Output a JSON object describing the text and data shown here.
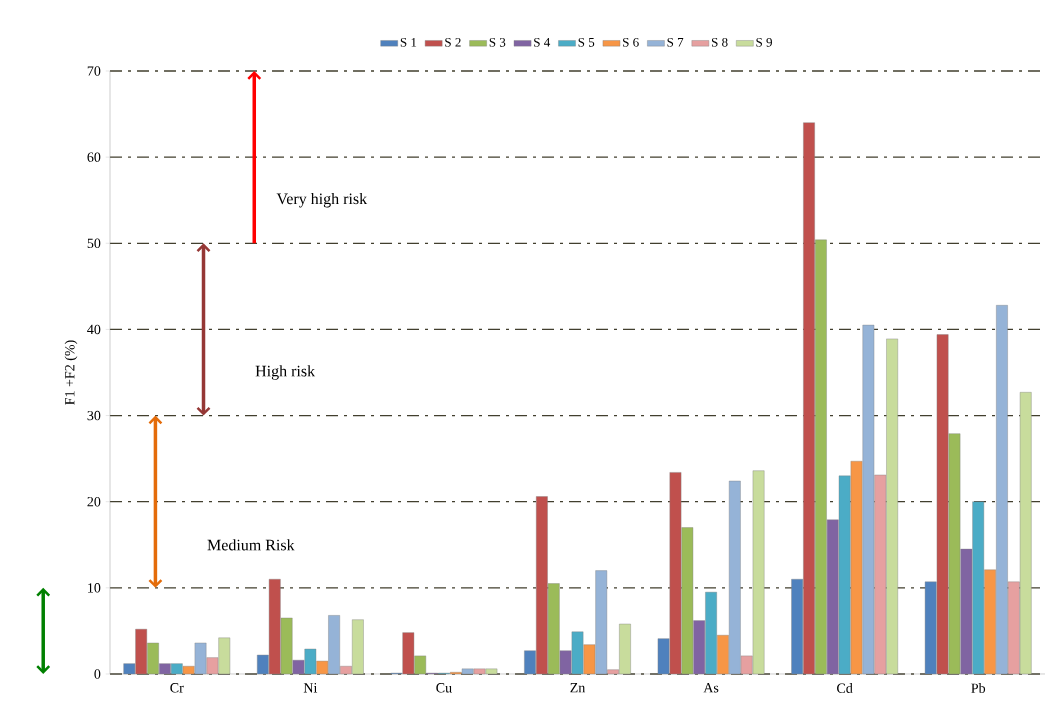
{
  "chart_data": {
    "type": "bar",
    "categories": [
      "Cr",
      "Ni",
      "Cu",
      "Zn",
      "As",
      "Cd",
      "Pb"
    ],
    "ylabel": "F1 +F2 (%)",
    "ylim": [
      0,
      70
    ],
    "yticks": [
      0,
      10,
      20,
      30,
      40,
      50,
      60,
      70
    ],
    "grid": "y",
    "legend": "top",
    "series": [
      {
        "name": "S 1",
        "color": "#4f81bd",
        "values": [
          1.2,
          2.2,
          0.1,
          2.7,
          4.1,
          11.0,
          10.7
        ]
      },
      {
        "name": "S 2",
        "color": "#c0504d",
        "values": [
          5.2,
          11.0,
          4.8,
          20.6,
          23.4,
          64.0,
          39.4
        ]
      },
      {
        "name": "S 3",
        "color": "#9bbb59",
        "values": [
          3.6,
          6.5,
          2.1,
          10.5,
          17.0,
          50.4,
          27.9
        ]
      },
      {
        "name": "S 4",
        "color": "#8064a2",
        "values": [
          1.2,
          1.6,
          0.1,
          2.7,
          6.2,
          17.9,
          14.5
        ]
      },
      {
        "name": "S 5",
        "color": "#4bacc6",
        "values": [
          1.2,
          2.9,
          0.1,
          4.9,
          9.5,
          23.0,
          20.0
        ]
      },
      {
        "name": "S 6",
        "color": "#f79646",
        "values": [
          0.9,
          1.5,
          0.2,
          3.4,
          4.5,
          24.7,
          12.1
        ]
      },
      {
        "name": "S 7",
        "color": "#95b3d7",
        "values": [
          3.6,
          6.8,
          0.6,
          12.0,
          22.4,
          40.5,
          42.8
        ]
      },
      {
        "name": "S 8",
        "color": "#e6a0a0",
        "values": [
          1.9,
          0.9,
          0.6,
          0.5,
          2.1,
          23.1,
          10.7
        ]
      },
      {
        "name": "S 9",
        "color": "#c8dc9c",
        "values": [
          4.2,
          6.3,
          0.6,
          5.8,
          23.6,
          38.9,
          32.7
        ]
      }
    ],
    "annotations": [
      "Very high risk",
      "High risk",
      "Medium Risk"
    ]
  }
}
